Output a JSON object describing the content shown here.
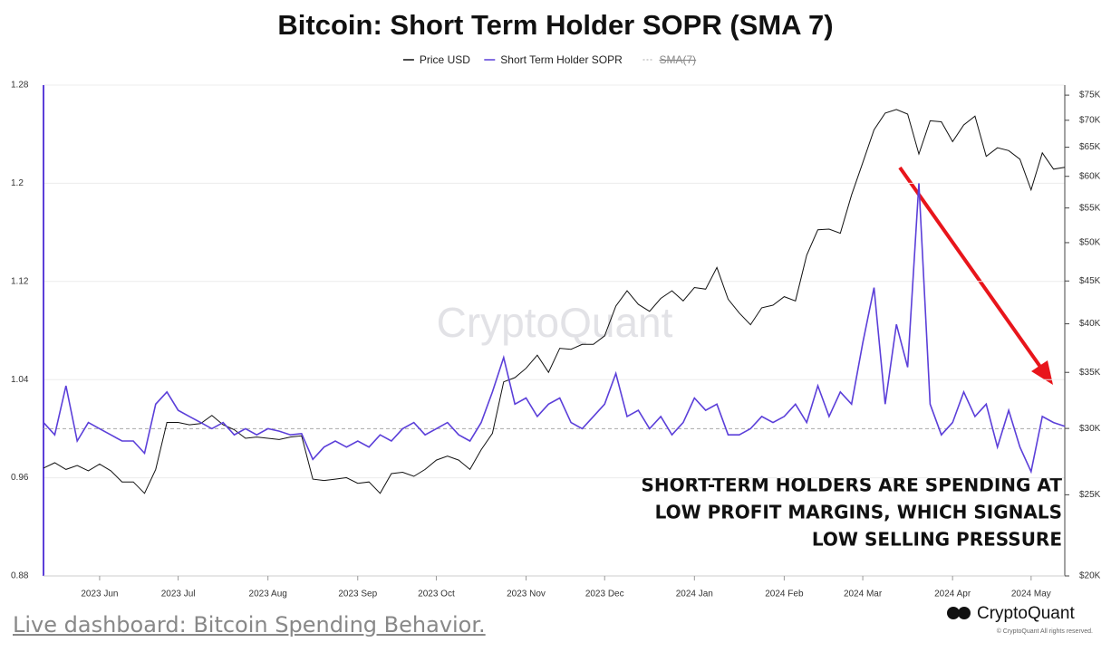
{
  "chart_data": {
    "type": "line",
    "title": "Bitcoin: Short Term Holder SOPR (SMA 7)",
    "watermark": "CryptoQuant",
    "brand": "CryptoQuant",
    "copyright": "© CryptoQuant All rights reserved.",
    "annotation": [
      "SHORT-TERM HOLDERS ARE SPENDING AT",
      "LOW PROFIT MARGINS, WHICH SIGNALS",
      "LOW SELLING PRESSURE"
    ],
    "categories": [
      null,
      null,
      null,
      null,
      null,
      "2023 Jun",
      null,
      null,
      null,
      null,
      null,
      null,
      "2023 Jul",
      null,
      null,
      null,
      null,
      null,
      null,
      null,
      "2023 Aug",
      null,
      null,
      null,
      null,
      null,
      null,
      null,
      "2023 Sep",
      null,
      null,
      null,
      null,
      null,
      null,
      "2023 Oct",
      null,
      null,
      null,
      null,
      null,
      null,
      null,
      "2023 Nov",
      null,
      null,
      null,
      null,
      null,
      null,
      "2023 Dec",
      null,
      null,
      null,
      null,
      null,
      null,
      null,
      "2024 Jan",
      null,
      null,
      null,
      null,
      null,
      null,
      null,
      "2024 Feb",
      null,
      null,
      null,
      null,
      null,
      null,
      "2024 Mar",
      null,
      null,
      null,
      null,
      null,
      null,
      null,
      "2024 Apr",
      null,
      null,
      null,
      null,
      null,
      null,
      "2024 May",
      null,
      null,
      null
    ],
    "series": [
      {
        "name": "Price USD",
        "color": "#111111",
        "axis": "y2",
        "values": [
          26900,
          27300,
          26800,
          27100,
          26700,
          27200,
          26700,
          25900,
          25900,
          25100,
          26800,
          30500,
          30500,
          30300,
          30400,
          31100,
          30300,
          29900,
          29200,
          29300,
          29200,
          29100,
          29300,
          29400,
          26100,
          26000,
          26100,
          26200,
          25800,
          25900,
          25100,
          26500,
          26600,
          26300,
          26800,
          27500,
          27800,
          27500,
          26800,
          28300,
          29600,
          34100,
          34500,
          35400,
          36700,
          35000,
          37400,
          37300,
          37800,
          37800,
          38700,
          42000,
          43800,
          42200,
          41400,
          42900,
          43800,
          42600,
          44200,
          44000,
          46700,
          42800,
          41200,
          39900,
          41800,
          42100,
          43100,
          42600,
          48300,
          51800,
          51900,
          51300,
          57000,
          62300,
          68200,
          71400,
          72100,
          71200,
          63800,
          69900,
          69700,
          66000,
          69100,
          70800,
          63400,
          64900,
          64400,
          62900,
          57800,
          64000,
          61200,
          61500
        ]
      },
      {
        "name": "Short Term Holder SOPR",
        "color": "#5b3fd9",
        "axis": "y",
        "values": [
          1.005,
          0.995,
          1.035,
          0.99,
          1.005,
          1.0,
          0.995,
          0.99,
          0.99,
          0.98,
          1.02,
          1.03,
          1.015,
          1.01,
          1.005,
          1.0,
          1.005,
          0.995,
          1.0,
          0.995,
          1.0,
          0.998,
          0.995,
          0.996,
          0.975,
          0.985,
          0.99,
          0.985,
          0.99,
          0.985,
          0.995,
          0.99,
          1.0,
          1.005,
          0.995,
          1.0,
          1.005,
          0.995,
          0.99,
          1.005,
          1.03,
          1.058,
          1.02,
          1.025,
          1.01,
          1.02,
          1.025,
          1.005,
          1.0,
          1.01,
          1.02,
          1.045,
          1.01,
          1.015,
          1.0,
          1.01,
          0.995,
          1.005,
          1.025,
          1.015,
          1.02,
          0.995,
          0.995,
          1.0,
          1.01,
          1.005,
          1.01,
          1.02,
          1.005,
          1.035,
          1.01,
          1.03,
          1.02,
          1.07,
          1.115,
          1.02,
          1.085,
          1.05,
          1.2,
          1.02,
          0.995,
          1.005,
          1.03,
          1.01,
          1.02,
          0.985,
          1.015,
          0.985,
          0.965,
          1.01,
          1.005,
          1.002
        ]
      },
      {
        "name": "SMA(7)",
        "color": "#aaaaaa",
        "visible": false
      }
    ],
    "reference_line": 1,
    "ylim": [
      0.88,
      1.28
    ],
    "yticks": [
      0.88,
      0.96,
      1.04,
      1.12,
      1.2,
      1.28
    ],
    "y2lim": [
      20000,
      77100
    ],
    "y2scale": "log",
    "y2ticks": [
      {
        "value": 20000,
        "label": "$20K"
      },
      {
        "value": 25000,
        "label": "$25K"
      },
      {
        "value": 30000,
        "label": "$30K"
      },
      {
        "value": 35000,
        "label": "$35K"
      },
      {
        "value": 40000,
        "label": "$40K"
      },
      {
        "value": 45000,
        "label": "$45K"
      },
      {
        "value": 50000,
        "label": "$50K"
      },
      {
        "value": 55000,
        "label": "$55K"
      },
      {
        "value": 60000,
        "label": "$60K"
      },
      {
        "value": 65000,
        "label": "$65K"
      },
      {
        "value": 70000,
        "label": "$70K"
      },
      {
        "value": 75000,
        "label": "$75K"
      }
    ],
    "grid": true,
    "legend": "top"
  },
  "footer_link": "Live dashboard: Bitcoin Spending Behavior."
}
